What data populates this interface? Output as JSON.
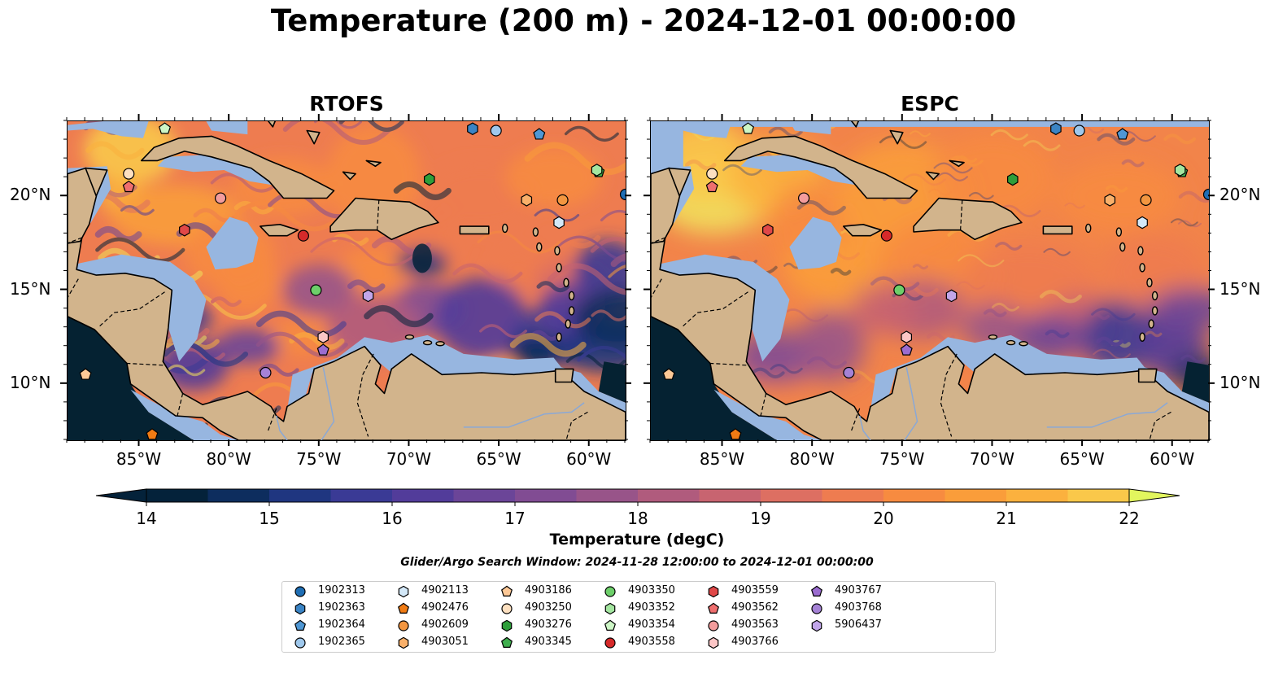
{
  "title": "Temperature (200 m) - 2024-12-01 00:00:00",
  "panels": [
    {
      "title": "RTOFS",
      "variant": "rtofs"
    },
    {
      "title": "ESPC",
      "variant": "espc"
    }
  ],
  "axes": {
    "lon_ticks": [
      "85°W",
      "80°W",
      "75°W",
      "70°W",
      "65°W",
      "60°W"
    ],
    "lat_ticks": [
      "20°N",
      "15°N",
      "10°N"
    ],
    "lon_range": [
      -89,
      -58
    ],
    "lat_range": [
      7,
      24
    ]
  },
  "colorbar": {
    "label": "Temperature (degC)",
    "ticks": [
      "14",
      "15",
      "16",
      "17",
      "18",
      "19",
      "20",
      "21",
      "22"
    ],
    "range": [
      14,
      22
    ],
    "colors": [
      "#04223a",
      "#0d2d5e",
      "#1f3680",
      "#3a3a95",
      "#523c9a",
      "#6b4598",
      "#814c93",
      "#985489",
      "#b05b7d",
      "#c86470",
      "#dd6f62",
      "#ee7c50",
      "#f78b40",
      "#fa9d3a",
      "#fbb13e",
      "#fac84a",
      "#f1e05c"
    ],
    "under_color": "#04223a",
    "over_color": "#e2f65e"
  },
  "search_window": "Glider/Argo Search Window: 2024-11-28 12:00:00 to 2024-12-01 00:00:00",
  "colors": {
    "land": "#d2b48c",
    "shelf": "#97b6e0",
    "deep": "#052232",
    "coast": "#000000"
  },
  "floats": [
    {
      "id": "1902313",
      "marker": "circle",
      "color": "#1f6eb4",
      "lon": -58.0,
      "lat": 20.1
    },
    {
      "id": "1902363",
      "marker": "hexagon",
      "color": "#3a84c5",
      "lon": -66.5,
      "lat": 23.6
    },
    {
      "id": "1902364",
      "marker": "pentagon",
      "color": "#4f97d4",
      "lon": -62.8,
      "lat": 23.3
    },
    {
      "id": "1902365",
      "marker": "circle",
      "color": "#9fc8ec",
      "lon": -65.2,
      "lat": 23.5
    },
    {
      "id": "4902113",
      "marker": "hexagon",
      "color": "#d3e8f8",
      "lon": -61.7,
      "lat": 18.6
    },
    {
      "id": "4902476",
      "marker": "pentagon",
      "color": "#f07b14",
      "lon": -84.3,
      "lat": 7.3
    },
    {
      "id": "4902609",
      "marker": "circle",
      "color": "#f39640",
      "lon": -61.5,
      "lat": 19.8
    },
    {
      "id": "4903051",
      "marker": "hexagon",
      "color": "#f9b06a",
      "lon": -63.5,
      "lat": 19.8
    },
    {
      "id": "4903186",
      "marker": "pentagon",
      "color": "#fdc896",
      "lon": -88.0,
      "lat": 10.5
    },
    {
      "id": "4903250",
      "marker": "circle",
      "color": "#fde0c0",
      "lon": -85.6,
      "lat": 21.2
    },
    {
      "id": "4903276",
      "marker": "hexagon",
      "color": "#2e9e3a",
      "lon": -68.9,
      "lat": 20.9
    },
    {
      "id": "4903345",
      "marker": "pentagon",
      "color": "#3fae4e",
      "lon": -59.5,
      "lat": 21.3
    },
    {
      "id": "4903350",
      "marker": "circle",
      "color": "#6dcf6a",
      "lon": -75.2,
      "lat": 15.0
    },
    {
      "id": "4903352",
      "marker": "hexagon",
      "color": "#a4e6a0",
      "lon": -59.6,
      "lat": 21.4
    },
    {
      "id": "4903354",
      "marker": "pentagon",
      "color": "#cdf6c6",
      "lon": -83.6,
      "lat": 23.6
    },
    {
      "id": "4903558",
      "marker": "circle",
      "color": "#d62a2a",
      "lon": -75.9,
      "lat": 17.9
    },
    {
      "id": "4903559",
      "marker": "hexagon",
      "color": "#e04848",
      "lon": -82.5,
      "lat": 18.2
    },
    {
      "id": "4903562",
      "marker": "pentagon",
      "color": "#ef6e6e",
      "lon": -85.6,
      "lat": 20.5
    },
    {
      "id": "4903563",
      "marker": "circle",
      "color": "#f39c9c",
      "lon": -80.5,
      "lat": 19.9
    },
    {
      "id": "4903766",
      "marker": "hexagon",
      "color": "#fcc6c6",
      "lon": -74.8,
      "lat": 12.5
    },
    {
      "id": "4903767",
      "marker": "pentagon",
      "color": "#9b6cd0",
      "lon": -74.8,
      "lat": 11.8
    },
    {
      "id": "4903768",
      "marker": "circle",
      "color": "#a582d6",
      "lon": -78.0,
      "lat": 10.6
    },
    {
      "id": "5906437",
      "marker": "hexagon",
      "color": "#c2a6ea",
      "lon": -72.3,
      "lat": 14.7
    }
  ]
}
